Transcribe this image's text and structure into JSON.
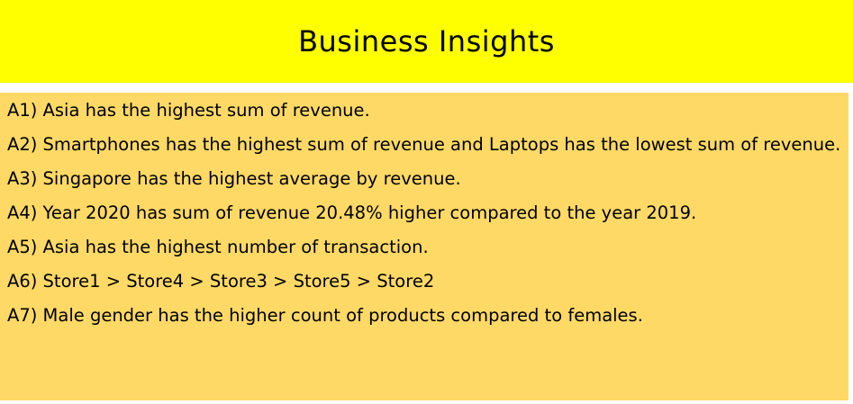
{
  "slide": {
    "title": "Business Insights",
    "insights": [
      "A1) Asia has the highest sum of revenue.",
      "A2) Smartphones has the highest sum of revenue and Laptops has the lowest sum of revenue.",
      "A3) Singapore has the highest average by revenue.",
      "A4) Year 2020 has sum of revenue 20.48% higher compared to the year 2019.",
      "A5) Asia has the highest number of transaction.",
      "A6) Store1 > Store4 > Store3 > Store5 > Store2",
      "A7) Male gender has the higher count of products compared to females."
    ]
  },
  "colors": {
    "title_background": "#ffff00",
    "content_background": "#ffd966",
    "text": "#000000"
  }
}
